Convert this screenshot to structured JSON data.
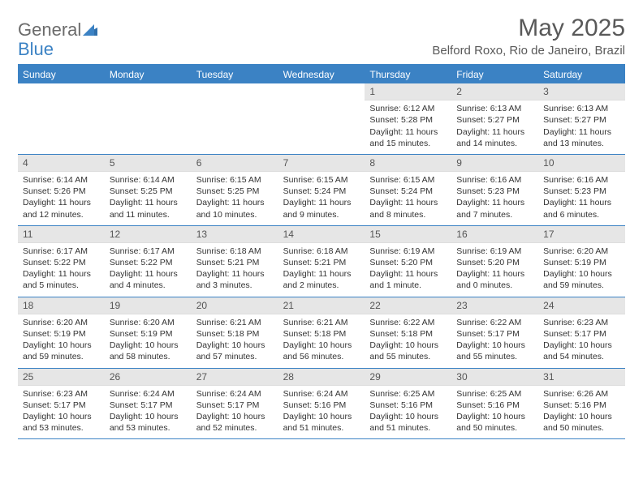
{
  "logo": {
    "text1": "General",
    "text2": "Blue"
  },
  "title": "May 2025",
  "location": "Belford Roxo, Rio de Janeiro, Brazil",
  "colors": {
    "header_bg": "#3b82c4",
    "header_text": "#ffffff",
    "daynum_bg": "#e6e6e6",
    "text": "#333333",
    "title_text": "#595959",
    "logo_gray": "#6b6b6b",
    "logo_blue": "#3b82c4",
    "border": "#3b82c4"
  },
  "day_names": [
    "Sunday",
    "Monday",
    "Tuesday",
    "Wednesday",
    "Thursday",
    "Friday",
    "Saturday"
  ],
  "weeks": [
    [
      null,
      null,
      null,
      null,
      {
        "n": "1",
        "sr": "Sunrise: 6:12 AM",
        "ss": "Sunset: 5:28 PM",
        "d1": "Daylight: 11 hours",
        "d2": "and 15 minutes."
      },
      {
        "n": "2",
        "sr": "Sunrise: 6:13 AM",
        "ss": "Sunset: 5:27 PM",
        "d1": "Daylight: 11 hours",
        "d2": "and 14 minutes."
      },
      {
        "n": "3",
        "sr": "Sunrise: 6:13 AM",
        "ss": "Sunset: 5:27 PM",
        "d1": "Daylight: 11 hours",
        "d2": "and 13 minutes."
      }
    ],
    [
      {
        "n": "4",
        "sr": "Sunrise: 6:14 AM",
        "ss": "Sunset: 5:26 PM",
        "d1": "Daylight: 11 hours",
        "d2": "and 12 minutes."
      },
      {
        "n": "5",
        "sr": "Sunrise: 6:14 AM",
        "ss": "Sunset: 5:25 PM",
        "d1": "Daylight: 11 hours",
        "d2": "and 11 minutes."
      },
      {
        "n": "6",
        "sr": "Sunrise: 6:15 AM",
        "ss": "Sunset: 5:25 PM",
        "d1": "Daylight: 11 hours",
        "d2": "and 10 minutes."
      },
      {
        "n": "7",
        "sr": "Sunrise: 6:15 AM",
        "ss": "Sunset: 5:24 PM",
        "d1": "Daylight: 11 hours",
        "d2": "and 9 minutes."
      },
      {
        "n": "8",
        "sr": "Sunrise: 6:15 AM",
        "ss": "Sunset: 5:24 PM",
        "d1": "Daylight: 11 hours",
        "d2": "and 8 minutes."
      },
      {
        "n": "9",
        "sr": "Sunrise: 6:16 AM",
        "ss": "Sunset: 5:23 PM",
        "d1": "Daylight: 11 hours",
        "d2": "and 7 minutes."
      },
      {
        "n": "10",
        "sr": "Sunrise: 6:16 AM",
        "ss": "Sunset: 5:23 PM",
        "d1": "Daylight: 11 hours",
        "d2": "and 6 minutes."
      }
    ],
    [
      {
        "n": "11",
        "sr": "Sunrise: 6:17 AM",
        "ss": "Sunset: 5:22 PM",
        "d1": "Daylight: 11 hours",
        "d2": "and 5 minutes."
      },
      {
        "n": "12",
        "sr": "Sunrise: 6:17 AM",
        "ss": "Sunset: 5:22 PM",
        "d1": "Daylight: 11 hours",
        "d2": "and 4 minutes."
      },
      {
        "n": "13",
        "sr": "Sunrise: 6:18 AM",
        "ss": "Sunset: 5:21 PM",
        "d1": "Daylight: 11 hours",
        "d2": "and 3 minutes."
      },
      {
        "n": "14",
        "sr": "Sunrise: 6:18 AM",
        "ss": "Sunset: 5:21 PM",
        "d1": "Daylight: 11 hours",
        "d2": "and 2 minutes."
      },
      {
        "n": "15",
        "sr": "Sunrise: 6:19 AM",
        "ss": "Sunset: 5:20 PM",
        "d1": "Daylight: 11 hours",
        "d2": "and 1 minute."
      },
      {
        "n": "16",
        "sr": "Sunrise: 6:19 AM",
        "ss": "Sunset: 5:20 PM",
        "d1": "Daylight: 11 hours",
        "d2": "and 0 minutes."
      },
      {
        "n": "17",
        "sr": "Sunrise: 6:20 AM",
        "ss": "Sunset: 5:19 PM",
        "d1": "Daylight: 10 hours",
        "d2": "and 59 minutes."
      }
    ],
    [
      {
        "n": "18",
        "sr": "Sunrise: 6:20 AM",
        "ss": "Sunset: 5:19 PM",
        "d1": "Daylight: 10 hours",
        "d2": "and 59 minutes."
      },
      {
        "n": "19",
        "sr": "Sunrise: 6:20 AM",
        "ss": "Sunset: 5:19 PM",
        "d1": "Daylight: 10 hours",
        "d2": "and 58 minutes."
      },
      {
        "n": "20",
        "sr": "Sunrise: 6:21 AM",
        "ss": "Sunset: 5:18 PM",
        "d1": "Daylight: 10 hours",
        "d2": "and 57 minutes."
      },
      {
        "n": "21",
        "sr": "Sunrise: 6:21 AM",
        "ss": "Sunset: 5:18 PM",
        "d1": "Daylight: 10 hours",
        "d2": "and 56 minutes."
      },
      {
        "n": "22",
        "sr": "Sunrise: 6:22 AM",
        "ss": "Sunset: 5:18 PM",
        "d1": "Daylight: 10 hours",
        "d2": "and 55 minutes."
      },
      {
        "n": "23",
        "sr": "Sunrise: 6:22 AM",
        "ss": "Sunset: 5:17 PM",
        "d1": "Daylight: 10 hours",
        "d2": "and 55 minutes."
      },
      {
        "n": "24",
        "sr": "Sunrise: 6:23 AM",
        "ss": "Sunset: 5:17 PM",
        "d1": "Daylight: 10 hours",
        "d2": "and 54 minutes."
      }
    ],
    [
      {
        "n": "25",
        "sr": "Sunrise: 6:23 AM",
        "ss": "Sunset: 5:17 PM",
        "d1": "Daylight: 10 hours",
        "d2": "and 53 minutes."
      },
      {
        "n": "26",
        "sr": "Sunrise: 6:24 AM",
        "ss": "Sunset: 5:17 PM",
        "d1": "Daylight: 10 hours",
        "d2": "and 53 minutes."
      },
      {
        "n": "27",
        "sr": "Sunrise: 6:24 AM",
        "ss": "Sunset: 5:17 PM",
        "d1": "Daylight: 10 hours",
        "d2": "and 52 minutes."
      },
      {
        "n": "28",
        "sr": "Sunrise: 6:24 AM",
        "ss": "Sunset: 5:16 PM",
        "d1": "Daylight: 10 hours",
        "d2": "and 51 minutes."
      },
      {
        "n": "29",
        "sr": "Sunrise: 6:25 AM",
        "ss": "Sunset: 5:16 PM",
        "d1": "Daylight: 10 hours",
        "d2": "and 51 minutes."
      },
      {
        "n": "30",
        "sr": "Sunrise: 6:25 AM",
        "ss": "Sunset: 5:16 PM",
        "d1": "Daylight: 10 hours",
        "d2": "and 50 minutes."
      },
      {
        "n": "31",
        "sr": "Sunrise: 6:26 AM",
        "ss": "Sunset: 5:16 PM",
        "d1": "Daylight: 10 hours",
        "d2": "and 50 minutes."
      }
    ]
  ]
}
